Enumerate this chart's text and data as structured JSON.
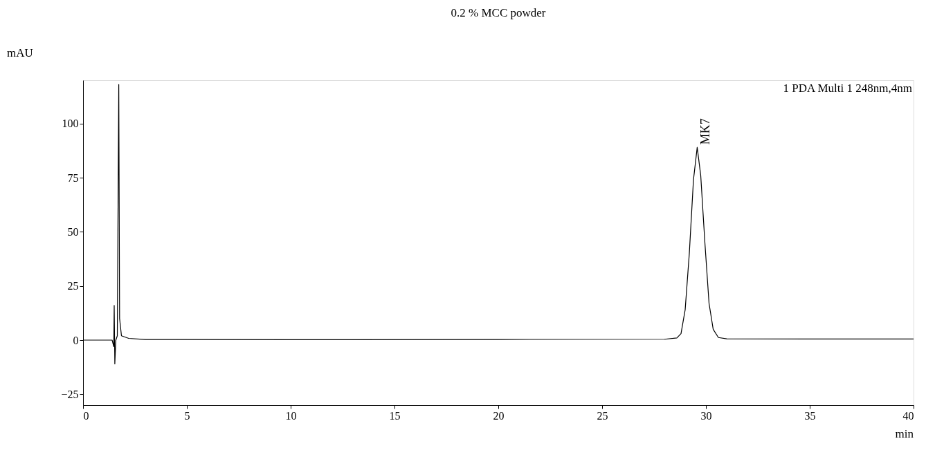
{
  "chart_data": {
    "type": "line",
    "title": "0.2 % MCC powder",
    "xlabel": "min",
    "ylabel": "mAU",
    "annotations": [
      "MK7",
      "1 PDA Multi 1 248nm,4nm"
    ],
    "x": [
      0,
      1.4,
      1.48,
      1.5,
      1.53,
      1.58,
      1.65,
      1.72,
      1.76,
      1.85,
      2.2,
      3,
      10,
      20,
      28,
      28.6,
      28.8,
      29.0,
      29.2,
      29.4,
      29.58,
      29.75,
      29.95,
      30.15,
      30.35,
      30.6,
      31,
      35,
      40
    ],
    "series": [
      {
        "color": "#000000",
        "values": [
          0,
          0,
          -3,
          16,
          -11,
          0,
          2,
          118,
          10,
          2,
          0.8,
          0.3,
          0.2,
          0.3,
          0.4,
          1,
          3,
          14,
          40,
          74,
          89,
          76,
          45,
          17,
          5,
          1.2,
          0.6,
          0.5,
          0.5
        ]
      }
    ],
    "xlim": [
      0,
      40
    ],
    "xticks": [
      0,
      5,
      10,
      15,
      20,
      25,
      30,
      35,
      40
    ],
    "ylim": [
      -30,
      120
    ],
    "yticks": [
      -25,
      0,
      25,
      50,
      75,
      100
    ],
    "grid": false,
    "marker": "none",
    "line_style": "solid"
  }
}
